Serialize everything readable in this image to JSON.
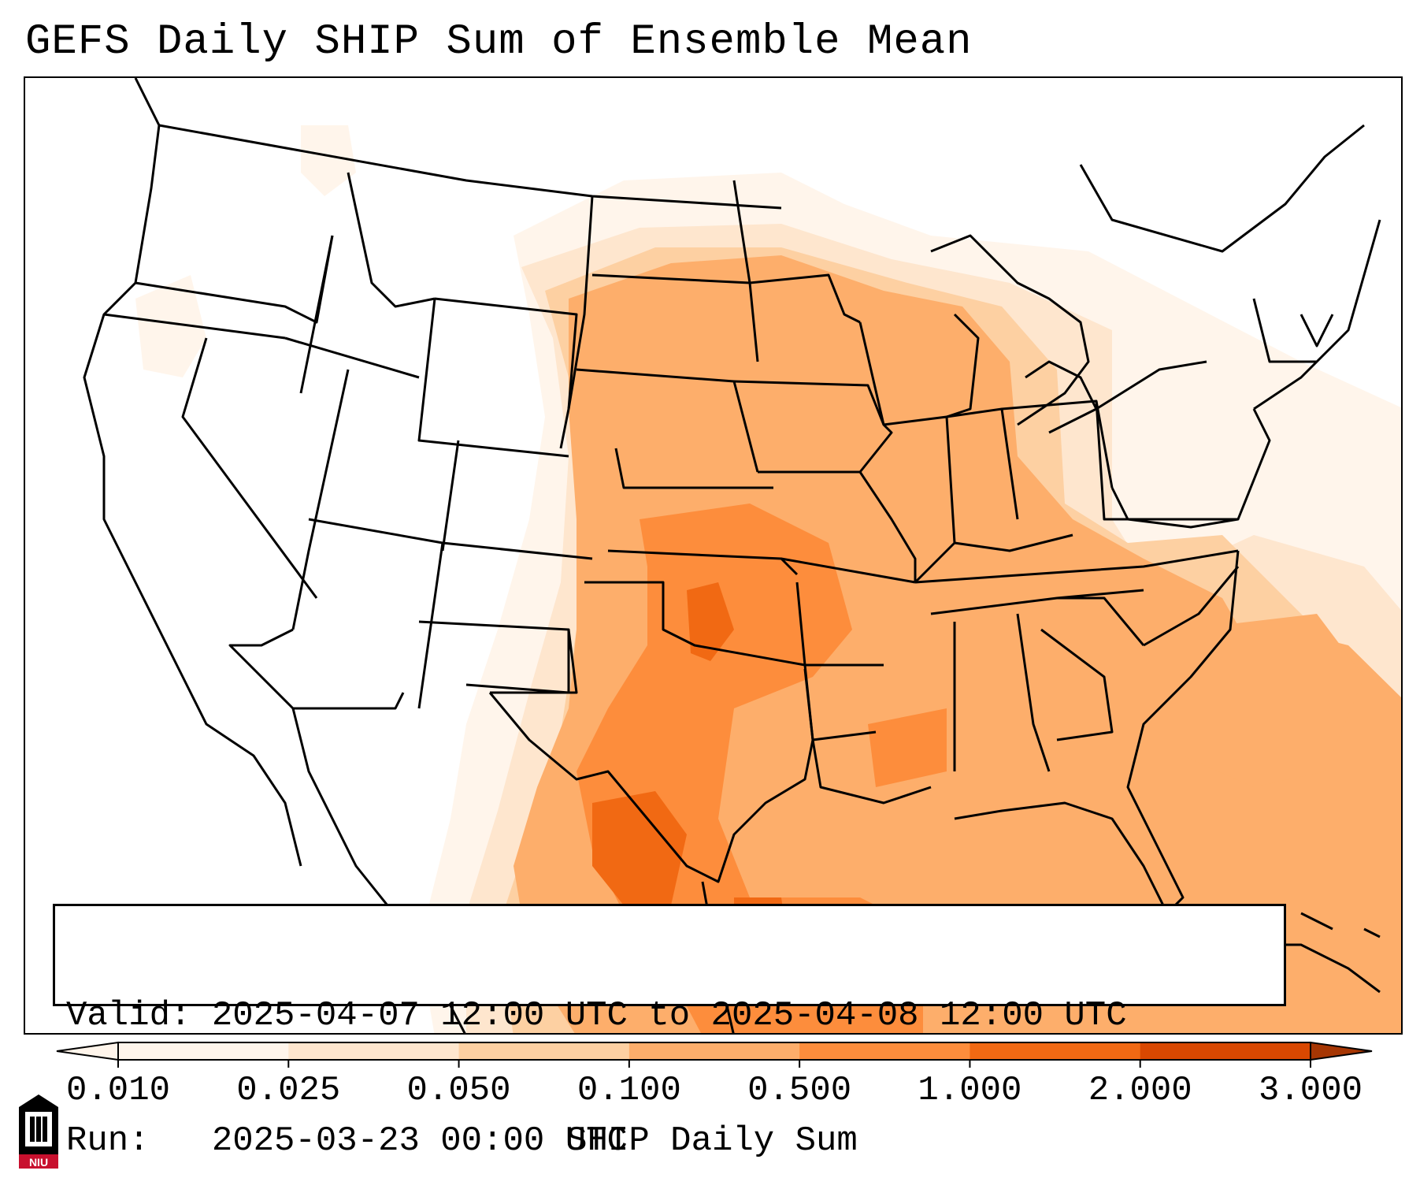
{
  "title": "GEFS Daily SHIP Sum of Ensemble Mean",
  "info": {
    "valid_line": "Valid: 2025-04-07 12:00 UTC to 2025-04-08 12:00 UTC",
    "run_line": "Run:   2025-03-23 00:00 UTC"
  },
  "colorbar": {
    "label": "SHIP Daily Sum",
    "ticks": [
      "0.010",
      "0.025",
      "0.050",
      "0.100",
      "0.500",
      "1.000",
      "2.000",
      "3.000"
    ],
    "colors": [
      "#fff5eb",
      "#fee6ce",
      "#fdd0a2",
      "#fdae6b",
      "#fd8d3c",
      "#f16913",
      "#d94801",
      "#a63603"
    ],
    "extend": "both"
  },
  "logo": {
    "text": "NIU",
    "colors": {
      "primary": "#c8102e",
      "secondary": "#000000"
    }
  },
  "map": {
    "region": "Continental United States",
    "projection": "Lambert Conformal",
    "fill_levels": [
      {
        "level": "0.010-0.025",
        "color": "#fff5eb",
        "areas": "outer fringe: western US patches, Northeast, Atlantic and Caribbean"
      },
      {
        "level": "0.025-0.050",
        "color": "#fee6ce",
        "areas": "Great Plains edge, Ohio Valley, western Atlantic"
      },
      {
        "level": "0.050-0.100",
        "color": "#fdd0a2",
        "areas": "Dakotas, Great Lakes, Florida Gulf coast"
      },
      {
        "level": "0.100-0.500",
        "color": "#fdae6b",
        "areas": "Central and Southern Plains, Midwest, Southeast, offshore Atlantic"
      },
      {
        "level": "0.500-1.000",
        "color": "#fd8d3c",
        "areas": "Kansas, Oklahoma, Missouri, Texas, western Gulf of Mexico"
      },
      {
        "level": "1.000-2.000",
        "color": "#f16913",
        "areas": "south-central Kansas, central Texas, Texas coast"
      }
    ]
  }
}
